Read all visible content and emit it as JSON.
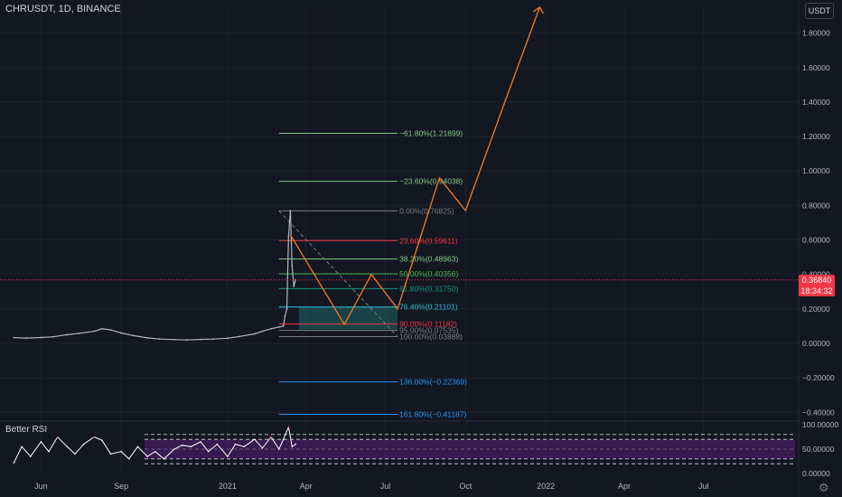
{
  "header": {
    "symbol": "CHRUSDT, 1D, BINANCE"
  },
  "rsi_panel": {
    "label": "Better RSI",
    "ticks": [
      "100.00000",
      "50.00000",
      "0.00000"
    ]
  },
  "price_scale": {
    "currency_button": "USDT"
  },
  "current_price": {
    "value": "0.36840",
    "countdown": "18:34:32"
  },
  "colors": {
    "background": "#131722",
    "orange": "#f57c1f",
    "candle": "#b2b5be",
    "rsi_band": "#7b1fa2",
    "current_price": "#f23645"
  },
  "icons": {
    "settings": "gear-icon"
  },
  "chart_data": [
    {
      "type": "line",
      "title": "CHRUSDT, 1D, BINANCE",
      "y_ticks": [
        "1.80000",
        "1.60000",
        "1.40000",
        "1.20000",
        "1.00000",
        "0.80000",
        "0.60000",
        "0.40000",
        "0.20000",
        "0.00000",
        "−0.20000",
        "−0.40000"
      ],
      "y_tick_values": [
        1.8,
        1.6,
        1.4,
        1.2,
        1.0,
        0.8,
        0.6,
        0.4,
        0.2,
        0.0,
        -0.2,
        -0.4
      ],
      "x_ticks": [
        "Jun",
        "Sep",
        "2021",
        "Apr",
        "Jul",
        "Oct",
        "2022",
        "Apr",
        "Jul"
      ],
      "x_tick_dates": [
        "2020-06-01",
        "2020-09-01",
        "2021-01-01",
        "2021-04-01",
        "2021-07-01",
        "2021-10-01",
        "2022-01-01",
        "2022-04-01",
        "2022-07-01"
      ],
      "ylim": [
        -0.43,
        1.95
      ],
      "xlim": [
        "2020-04-15",
        "2022-10-18"
      ],
      "price_series": {
        "dates": [
          "2020-05-01",
          "2020-05-15",
          "2020-06-01",
          "2020-06-15",
          "2020-07-01",
          "2020-07-15",
          "2020-08-01",
          "2020-08-10",
          "2020-08-20",
          "2020-09-01",
          "2020-09-15",
          "2020-10-01",
          "2020-10-15",
          "2020-11-01",
          "2020-11-15",
          "2020-12-01",
          "2020-12-15",
          "2021-01-01",
          "2021-01-15",
          "2021-02-01",
          "2021-02-10",
          "2021-02-20",
          "2021-03-01",
          "2021-03-06",
          "2021-03-08",
          "2021-03-10",
          "2021-03-12",
          "2021-03-14",
          "2021-03-16",
          "2021-03-18",
          "2021-03-20"
        ],
        "values": [
          0.033,
          0.031,
          0.034,
          0.038,
          0.05,
          0.058,
          0.07,
          0.085,
          0.078,
          0.06,
          0.045,
          0.032,
          0.025,
          0.022,
          0.02,
          0.023,
          0.025,
          0.03,
          0.04,
          0.055,
          0.07,
          0.085,
          0.095,
          0.1,
          0.16,
          0.2,
          0.62,
          0.77,
          0.45,
          0.33,
          0.3684
        ]
      },
      "projection_path": {
        "dates": [
          "2021-03-14",
          "2021-05-15",
          "2021-06-15",
          "2021-07-15",
          "2021-09-01",
          "2021-10-01",
          "2021-11-15",
          "2021-12-25"
        ],
        "values": [
          0.63,
          0.11,
          0.4,
          0.2,
          0.96,
          0.77,
          1.4,
          1.95
        ]
      },
      "fibonacci": {
        "start_date": "2021-03-01",
        "end_date": "2021-07-15",
        "levels": [
          {
            "label": "−61.80%(1.21899)",
            "value": 1.21899,
            "color": "#81c784"
          },
          {
            "label": "−23.60%(0.94038)",
            "value": 0.94038,
            "color": "#81c784"
          },
          {
            "label": "0.00%(0.76825)",
            "value": 0.76825,
            "color": "#787b86"
          },
          {
            "label": "23.60%(0.59611)",
            "value": 0.59611,
            "color": "#f23645"
          },
          {
            "label": "38.20%(0.48963)",
            "value": 0.48963,
            "color": "#81c784"
          },
          {
            "label": "50.00%(0.40356)",
            "value": 0.40356,
            "color": "#4caf50"
          },
          {
            "label": "61.80%(0.31750)",
            "value": 0.3175,
            "color": "#089981"
          },
          {
            "label": "76.40%(0.21101)",
            "value": 0.21101,
            "color": "#26c6da"
          },
          {
            "label": "90.00%(0.11182)",
            "value": 0.11182,
            "color": "#f23645"
          },
          {
            "label": "95.00%(0.07535)",
            "value": 0.07535,
            "color": "#787b86"
          },
          {
            "label": "100.00%(0.03888)",
            "value": 0.03888,
            "color": "#787b86"
          },
          {
            "label": "136.00%(−0.22369)",
            "value": -0.22369,
            "color": "#2196f3"
          },
          {
            "label": "161.80%(−0.41187)",
            "value": -0.41187,
            "color": "#2196f3"
          }
        ]
      }
    },
    {
      "type": "line",
      "title": "Better RSI",
      "ylim": [
        0,
        100
      ],
      "y_tick_values": [
        100,
        50,
        0
      ],
      "levels": [
        80,
        70,
        50,
        30,
        20
      ],
      "series": [
        {
          "dates": [
            "2020-05-01",
            "2020-05-10",
            "2020-05-20",
            "2020-06-01",
            "2020-06-10",
            "2020-06-20",
            "2020-07-01",
            "2020-07-10",
            "2020-07-20",
            "2020-08-01",
            "2020-08-10",
            "2020-08-20",
            "2020-09-01",
            "2020-09-10",
            "2020-09-20",
            "2020-10-01",
            "2020-10-10",
            "2020-10-20",
            "2020-11-01",
            "2020-11-10",
            "2020-11-20",
            "2020-12-01",
            "2020-12-10",
            "2020-12-20",
            "2021-01-01",
            "2021-01-10",
            "2021-01-20",
            "2021-02-01",
            "2021-02-10",
            "2021-02-20",
            "2021-03-01",
            "2021-03-06",
            "2021-03-12",
            "2021-03-16",
            "2021-03-20"
          ],
          "values": [
            22,
            55,
            35,
            65,
            45,
            75,
            55,
            40,
            60,
            75,
            68,
            40,
            45,
            30,
            55,
            35,
            45,
            30,
            50,
            58,
            55,
            65,
            45,
            60,
            35,
            60,
            55,
            70,
            52,
            75,
            50,
            70,
            95,
            55,
            60
          ]
        }
      ]
    }
  ]
}
